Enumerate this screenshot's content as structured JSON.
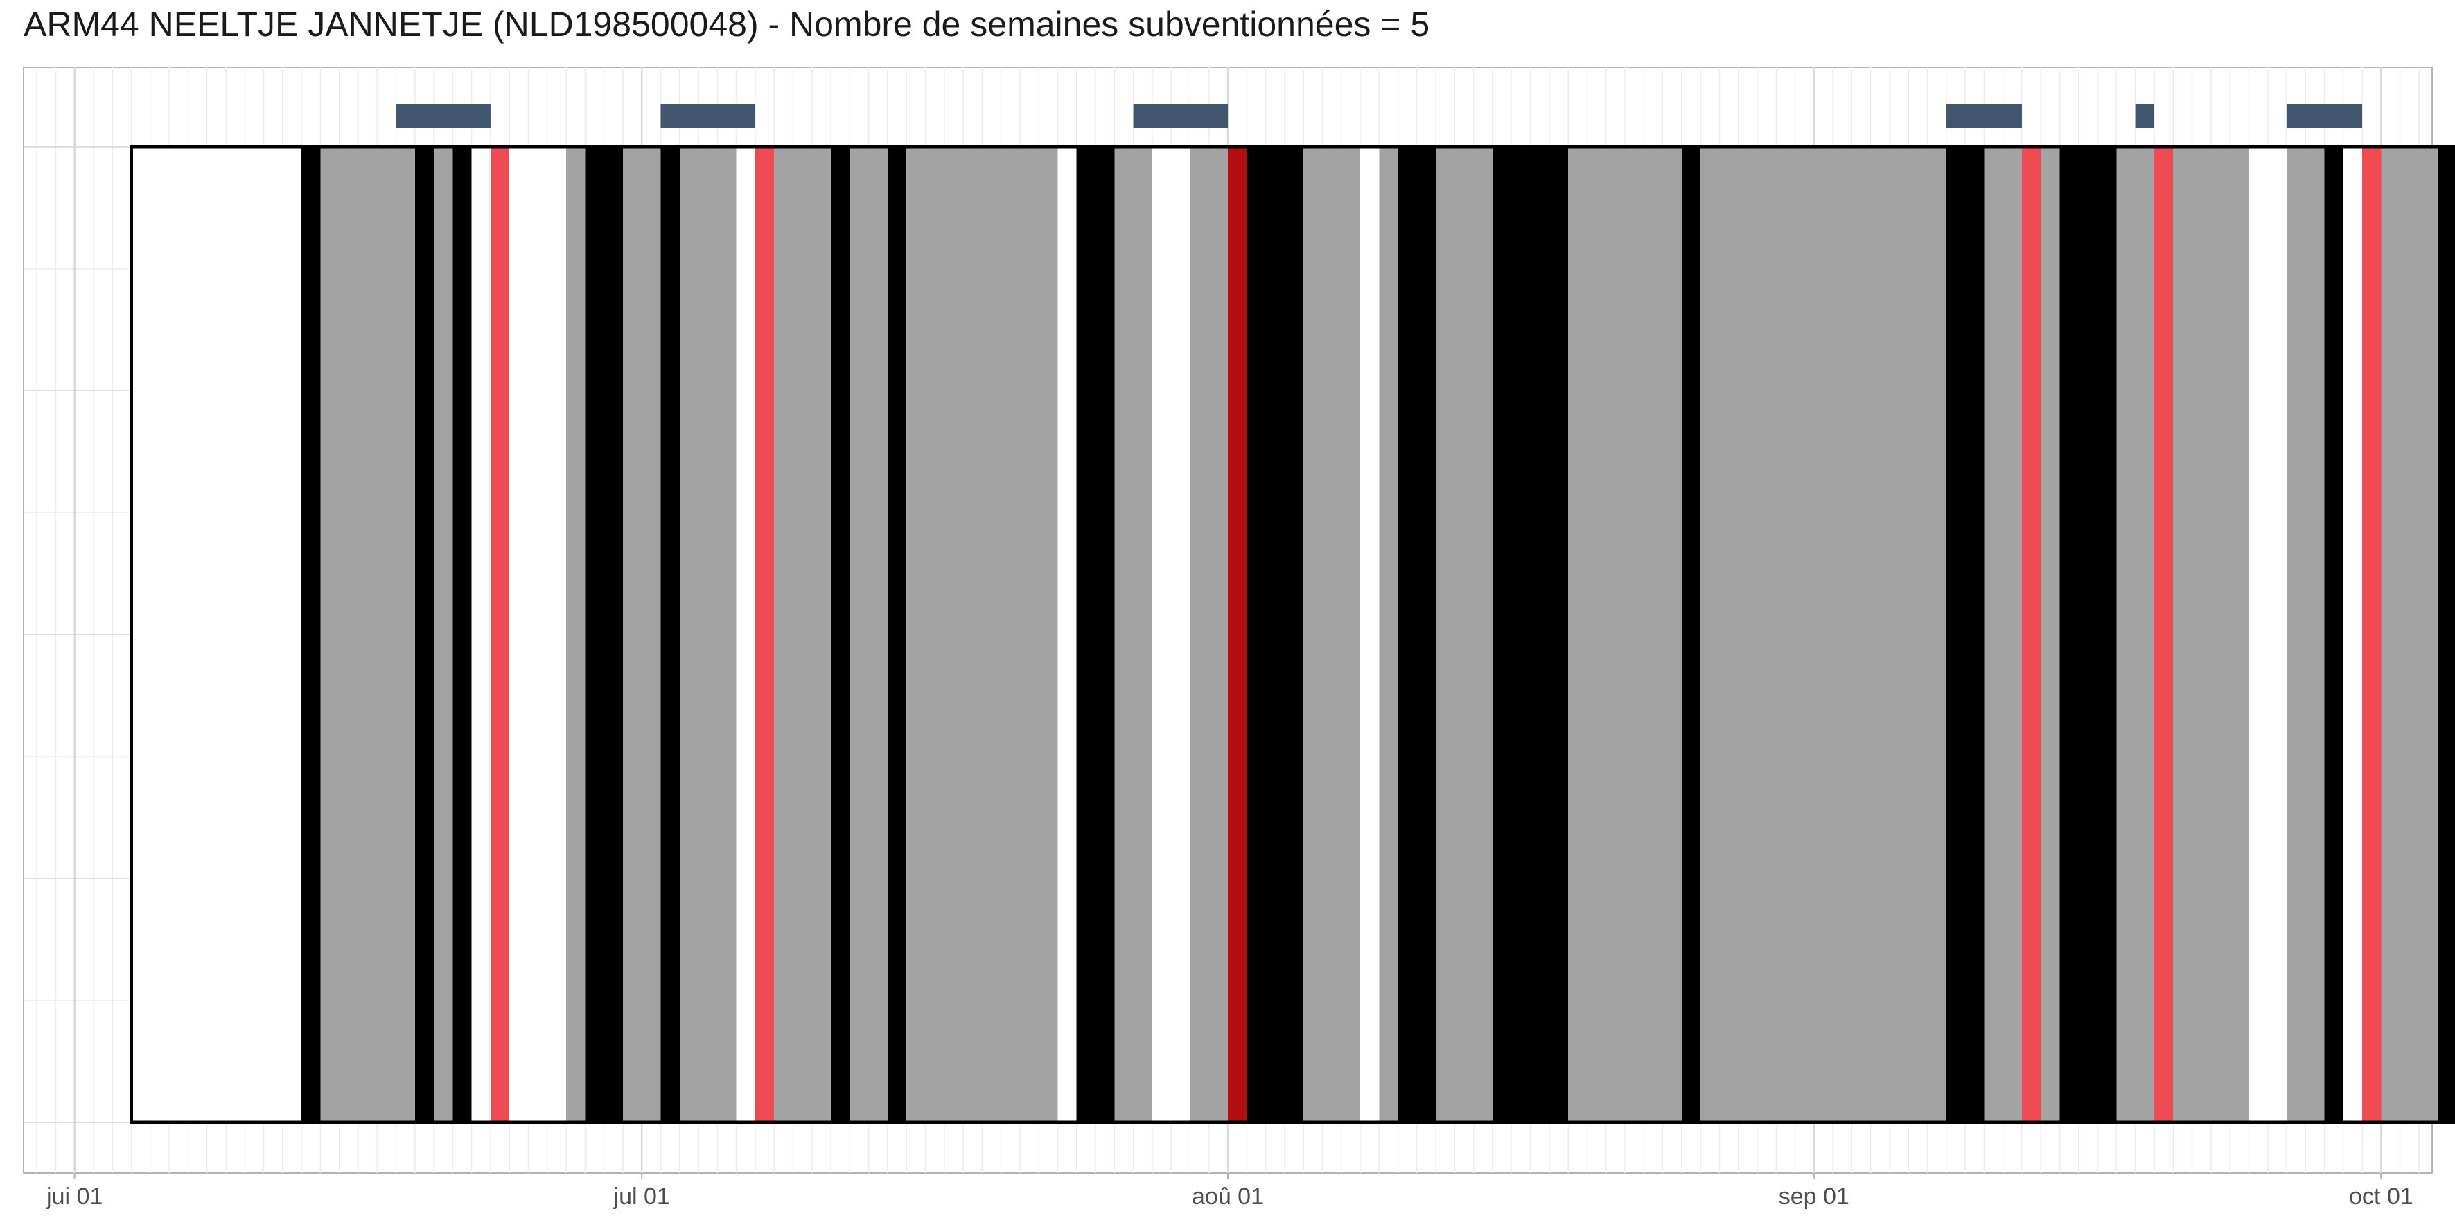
{
  "chart_data": {
    "type": "timeline",
    "title": "ARM44 NEELTJE JANNETJE (NLD198500048) - Nombre de semaines subventionnées = 5",
    "x_axis": {
      "ticks": [
        {
          "label": "jui 01",
          "day": 0
        },
        {
          "label": "jul 01",
          "day": 30
        },
        {
          "label": "aoû 01",
          "day": 61
        },
        {
          "label": "sep 01",
          "day": 92
        },
        {
          "label": "oct 01",
          "day": 122
        }
      ],
      "range_days": [
        -2.7,
        124.7
      ],
      "grid": true
    },
    "frame_days": [
      3,
      126
    ],
    "colors": {
      "gray": "#a3a3a3",
      "black": "#000000",
      "red": "#ee4b52",
      "darkred": "#b30e12",
      "white": "#ffffff",
      "top": "#3f566e"
    },
    "segments": [
      {
        "start": 3,
        "end": 12,
        "color": "white"
      },
      {
        "start": 12,
        "end": 13,
        "color": "black"
      },
      {
        "start": 13,
        "end": 18,
        "color": "gray"
      },
      {
        "start": 18,
        "end": 19,
        "color": "black"
      },
      {
        "start": 19,
        "end": 20,
        "color": "gray"
      },
      {
        "start": 20,
        "end": 21,
        "color": "black"
      },
      {
        "start": 21,
        "end": 22,
        "color": "white"
      },
      {
        "start": 22,
        "end": 23,
        "color": "red"
      },
      {
        "start": 23,
        "end": 26,
        "color": "white"
      },
      {
        "start": 26,
        "end": 27,
        "color": "gray"
      },
      {
        "start": 27,
        "end": 29,
        "color": "black"
      },
      {
        "start": 29,
        "end": 31,
        "color": "gray"
      },
      {
        "start": 31,
        "end": 32,
        "color": "black"
      },
      {
        "start": 32,
        "end": 35,
        "color": "gray"
      },
      {
        "start": 35,
        "end": 36,
        "color": "white"
      },
      {
        "start": 36,
        "end": 37,
        "color": "red"
      },
      {
        "start": 37,
        "end": 40,
        "color": "gray"
      },
      {
        "start": 40,
        "end": 41,
        "color": "black"
      },
      {
        "start": 41,
        "end": 43,
        "color": "gray"
      },
      {
        "start": 43,
        "end": 44,
        "color": "black"
      },
      {
        "start": 44,
        "end": 52,
        "color": "gray"
      },
      {
        "start": 52,
        "end": 53,
        "color": "white"
      },
      {
        "start": 53,
        "end": 55,
        "color": "black"
      },
      {
        "start": 55,
        "end": 57,
        "color": "gray"
      },
      {
        "start": 57,
        "end": 59,
        "color": "white"
      },
      {
        "start": 59,
        "end": 61,
        "color": "gray"
      },
      {
        "start": 61,
        "end": 62,
        "color": "darkred"
      },
      {
        "start": 62,
        "end": 65,
        "color": "black"
      },
      {
        "start": 65,
        "end": 68,
        "color": "gray"
      },
      {
        "start": 68,
        "end": 69,
        "color": "white"
      },
      {
        "start": 69,
        "end": 70,
        "color": "gray"
      },
      {
        "start": 70,
        "end": 72,
        "color": "black"
      },
      {
        "start": 72,
        "end": 75,
        "color": "gray"
      },
      {
        "start": 75,
        "end": 79,
        "color": "black"
      },
      {
        "start": 79,
        "end": 85,
        "color": "gray"
      },
      {
        "start": 85,
        "end": 86,
        "color": "black"
      },
      {
        "start": 86,
        "end": 99,
        "color": "gray"
      },
      {
        "start": 99,
        "end": 101,
        "color": "black"
      },
      {
        "start": 101,
        "end": 103,
        "color": "gray"
      },
      {
        "start": 103,
        "end": 104,
        "color": "red"
      },
      {
        "start": 104,
        "end": 105,
        "color": "gray"
      },
      {
        "start": 105,
        "end": 108,
        "color": "black"
      },
      {
        "start": 108,
        "end": 110,
        "color": "gray"
      },
      {
        "start": 110,
        "end": 111,
        "color": "red"
      },
      {
        "start": 111,
        "end": 115,
        "color": "gray"
      },
      {
        "start": 115,
        "end": 117,
        "color": "white"
      },
      {
        "start": 117,
        "end": 119,
        "color": "gray"
      },
      {
        "start": 119,
        "end": 120,
        "color": "black"
      },
      {
        "start": 120,
        "end": 121,
        "color": "white"
      },
      {
        "start": 121,
        "end": 122,
        "color": "red"
      },
      {
        "start": 122,
        "end": 125,
        "color": "gray"
      },
      {
        "start": 125,
        "end": 126,
        "color": "black"
      }
    ],
    "top_markers": [
      {
        "start": 17,
        "end": 22
      },
      {
        "start": 31,
        "end": 36
      },
      {
        "start": 56,
        "end": 61
      },
      {
        "start": 99,
        "end": 103
      },
      {
        "start": 109,
        "end": 110
      },
      {
        "start": 117,
        "end": 121
      }
    ]
  }
}
